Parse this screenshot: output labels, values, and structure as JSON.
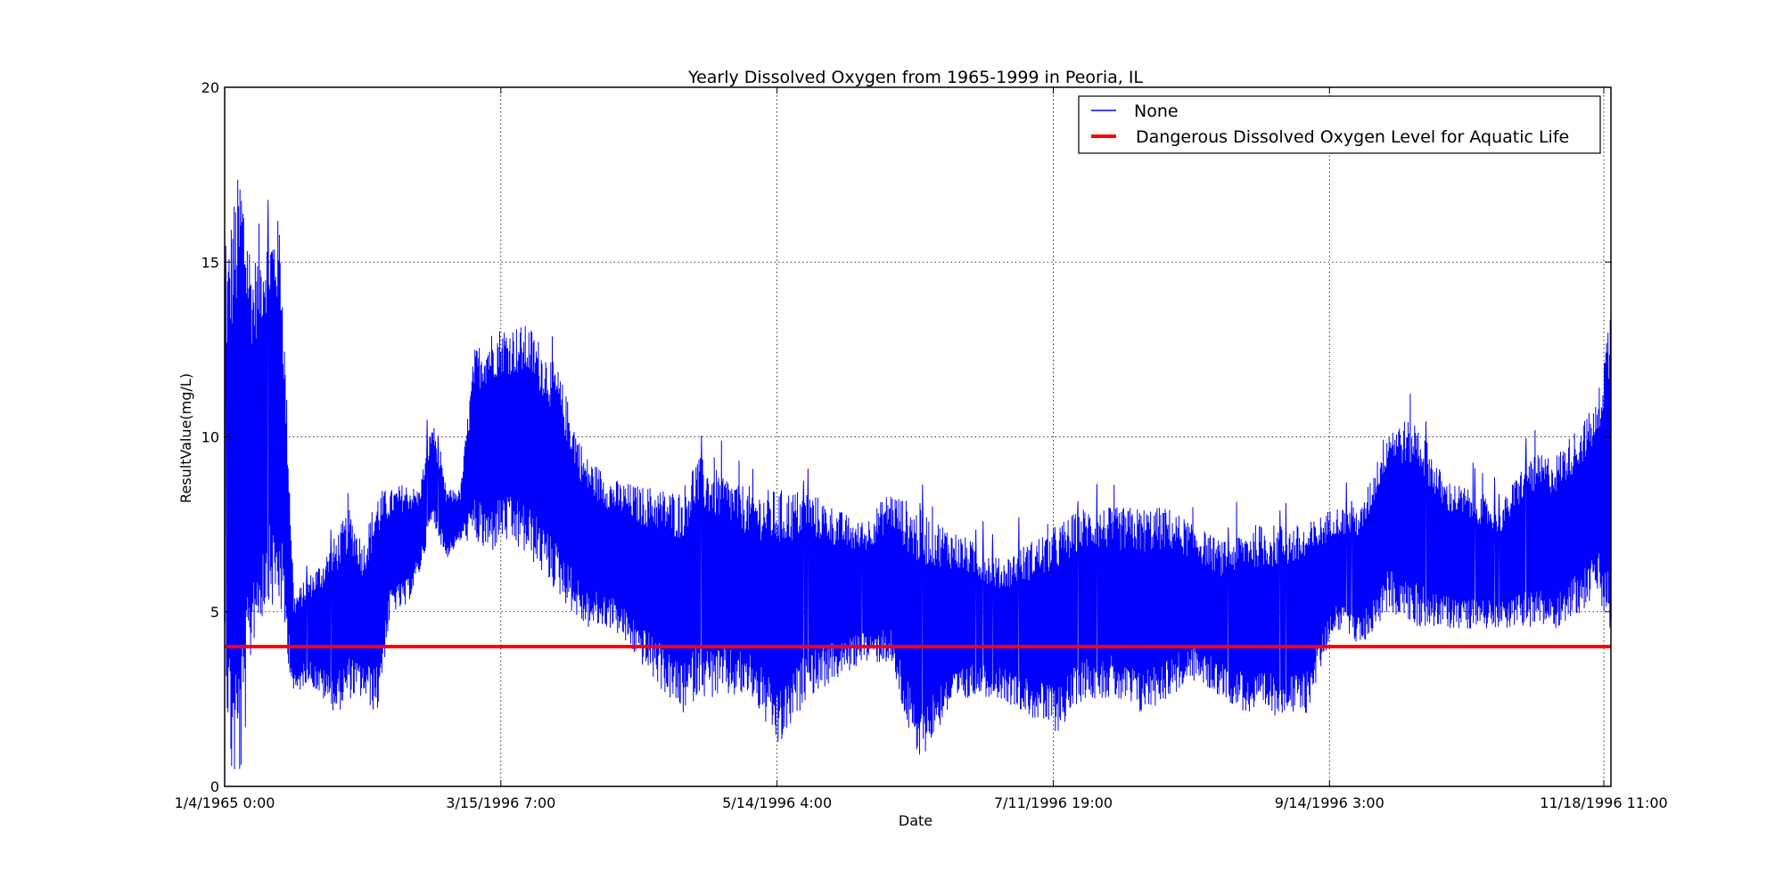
{
  "chart_data": {
    "type": "line",
    "title": "Yearly Dissolved Oxygen from 1965-1999 in Peoria, IL",
    "xlabel": "Date",
    "ylabel": "ResultValue(mg/L)",
    "ylim": [
      0,
      20
    ],
    "yticks": [
      "0",
      "5",
      "10",
      "15",
      "20"
    ],
    "xticks": [
      "1/4/1965 0:00",
      "3/15/1996 7:00",
      "5/14/1996 4:00",
      "7/11/1996 19:00",
      "9/14/1996 3:00",
      "11/18/1996 11:00"
    ],
    "grid": true,
    "legend_position": "top-right",
    "legend": [
      {
        "label": "None",
        "color": "#0000ff"
      },
      {
        "label": "Dangerous Dissolved Oxygen Level for Aquatic Life",
        "color": "#ff0000"
      }
    ],
    "threshold": 4,
    "series_envelope": {
      "name": "None",
      "color": "#0000ff",
      "x_fraction": [
        0.0,
        0.005,
        0.012,
        0.02,
        0.03,
        0.04,
        0.05,
        0.06,
        0.07,
        0.08,
        0.09,
        0.1,
        0.11,
        0.12,
        0.13,
        0.14,
        0.15,
        0.16,
        0.17,
        0.18,
        0.19,
        0.2,
        0.22,
        0.24,
        0.26,
        0.28,
        0.3,
        0.31,
        0.32,
        0.33,
        0.34,
        0.36,
        0.38,
        0.4,
        0.42,
        0.44,
        0.46,
        0.48,
        0.5,
        0.52,
        0.54,
        0.56,
        0.58,
        0.6,
        0.62,
        0.64,
        0.66,
        0.68,
        0.7,
        0.72,
        0.74,
        0.76,
        0.78,
        0.8,
        0.82,
        0.84,
        0.86,
        0.88,
        0.9,
        0.92,
        0.94,
        0.96,
        0.98,
        0.99,
        1.0
      ],
      "upper": [
        14.5,
        16.5,
        18.0,
        15.0,
        16.0,
        16.3,
        5.5,
        6.0,
        6.5,
        7.2,
        8.0,
        7.0,
        8.5,
        8.5,
        8.7,
        8.5,
        10.5,
        8.5,
        8.5,
        12.5,
        13.0,
        13.2,
        13.2,
        12.0,
        9.5,
        8.8,
        8.6,
        8.6,
        8.5,
        8.5,
        9.5,
        9.0,
        8.5,
        8.5,
        8.5,
        8.0,
        7.5,
        8.5,
        8.0,
        7.5,
        7.0,
        6.5,
        7.0,
        7.5,
        8.0,
        8.0,
        8.0,
        8.0,
        7.5,
        7.0,
        7.5,
        7.5,
        7.5,
        8.0,
        8.0,
        10.5,
        10.5,
        8.8,
        8.5,
        8.0,
        9.5,
        9.5,
        10.5,
        11.0,
        14.0
      ],
      "lower": [
        3.0,
        0.0,
        0.0,
        4.0,
        5.0,
        5.0,
        2.5,
        3.0,
        2.5,
        2.0,
        2.5,
        2.5,
        2.0,
        5.0,
        5.0,
        6.0,
        7.5,
        6.5,
        7.0,
        7.0,
        6.5,
        7.0,
        6.5,
        5.5,
        4.5,
        4.5,
        3.5,
        3.0,
        2.5,
        2.0,
        2.5,
        2.5,
        2.5,
        1.0,
        2.5,
        3.0,
        3.5,
        3.5,
        0.5,
        2.0,
        2.5,
        2.5,
        2.0,
        1.5,
        2.5,
        2.5,
        2.0,
        2.5,
        3.0,
        2.5,
        2.0,
        2.0,
        2.0,
        4.5,
        4.0,
        5.0,
        4.5,
        4.5,
        4.5,
        4.5,
        4.5,
        4.5,
        5.0,
        5.5,
        4.0
      ]
    }
  }
}
